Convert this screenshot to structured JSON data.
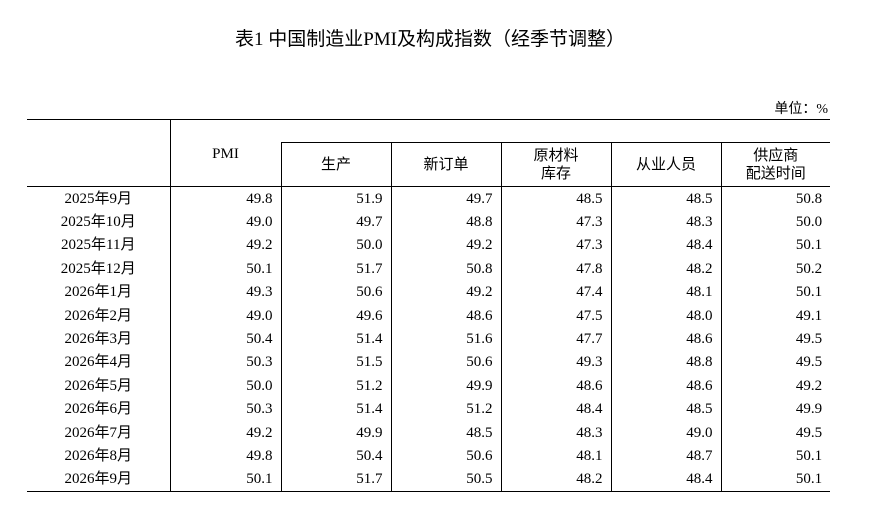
{
  "header": {
    "title": "表1 中国制造业PMI及构成指数（经季节调整）",
    "unit": "单位：%"
  },
  "table": {
    "columns": [
      "PMI",
      "生产",
      "新订单",
      "原材料\n库存",
      "从业人员",
      "供应商\n配送时间"
    ],
    "rows": [
      [
        "2025年9月",
        "49.8",
        "51.9",
        "49.7",
        "48.5",
        "48.5",
        "50.8"
      ],
      [
        "2025年10月",
        "49.0",
        "49.7",
        "48.8",
        "47.3",
        "48.3",
        "50.0"
      ],
      [
        "2025年11月",
        "49.2",
        "50.0",
        "49.2",
        "47.3",
        "48.4",
        "50.1"
      ],
      [
        "2025年12月",
        "50.1",
        "51.7",
        "50.8",
        "47.8",
        "48.2",
        "50.2"
      ],
      [
        "2026年1月",
        "49.3",
        "50.6",
        "49.2",
        "47.4",
        "48.1",
        "50.1"
      ],
      [
        "2026年2月",
        "49.0",
        "49.6",
        "48.6",
        "47.5",
        "48.0",
        "49.1"
      ],
      [
        "2026年3月",
        "50.4",
        "51.4",
        "51.6",
        "47.7",
        "48.6",
        "49.5"
      ],
      [
        "2026年4月",
        "50.3",
        "51.5",
        "50.6",
        "49.3",
        "48.8",
        "49.5"
      ],
      [
        "2026年5月",
        "50.0",
        "51.2",
        "49.9",
        "48.6",
        "48.6",
        "49.2"
      ],
      [
        "2026年6月",
        "50.3",
        "51.4",
        "51.2",
        "48.4",
        "48.5",
        "49.9"
      ],
      [
        "2026年7月",
        "49.2",
        "49.9",
        "48.5",
        "48.3",
        "49.0",
        "49.5"
      ],
      [
        "2026年8月",
        "49.8",
        "50.4",
        "50.6",
        "48.1",
        "48.7",
        "50.1"
      ],
      [
        "2026年9月",
        "50.1",
        "51.7",
        "50.5",
        "48.2",
        "48.4",
        "50.1"
      ]
    ]
  }
}
